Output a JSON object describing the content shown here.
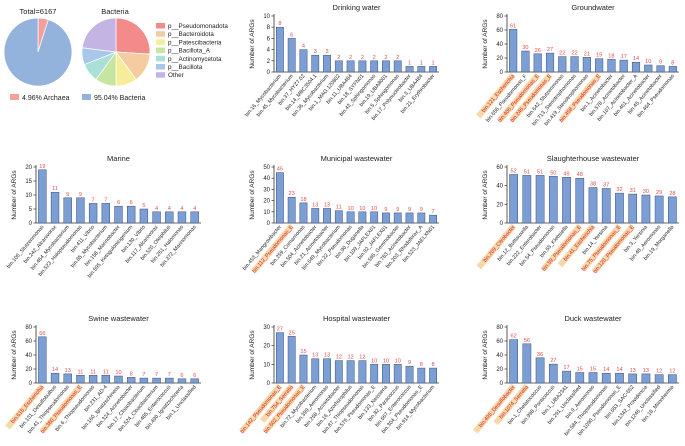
{
  "colors": {
    "bar": "#7b9fd4",
    "bar_stroke": "#3b4f77",
    "value_label": "#e34b4b",
    "highlight_red": "#d21f1f",
    "highlight_bg": "#f6d8aa",
    "archaea": "#f4a09e",
    "bacteria": "#93b2dc",
    "axis": "#333333"
  },
  "pie_total": {
    "title": "Total=6167",
    "slices": [
      {
        "name": "Archaea",
        "pct": 4.96,
        "color": "#f4a09e"
      },
      {
        "name": "Bacteria",
        "pct": 95.04,
        "color": "#93b2dc"
      }
    ],
    "legend": [
      {
        "text": "4.96% Archaea",
        "color": "#f4a09e"
      },
      {
        "text": "95.04% Bacteria",
        "color": "#93b2dc"
      }
    ]
  },
  "pie_bacteria": {
    "title": "Bacteria",
    "slices": [
      {
        "name": "p__Pseudomonadota",
        "value": 26,
        "color": "#f48b8b"
      },
      {
        "name": "p__Bacteroidota",
        "value": 14,
        "color": "#f5cba0"
      },
      {
        "name": "p__Patescibacteria",
        "value": 10,
        "color": "#f5ed99"
      },
      {
        "name": "p__Bacillota_A",
        "value": 10,
        "color": "#c6e5a1"
      },
      {
        "name": "p__Actinomycetota",
        "value": 9,
        "color": "#a9e1d9"
      },
      {
        "name": "p__Bacillota",
        "value": 8,
        "color": "#a8c7ea"
      },
      {
        "name": "Other",
        "value": 23,
        "color": "#c4b4e3"
      }
    ]
  },
  "chart_data": [
    {
      "type": "bar",
      "title": "Drinking water",
      "ylabel": "Number of ARGs",
      "ylim": [
        0,
        10
      ],
      "yticks": [
        0,
        2,
        4,
        6,
        8,
        10
      ],
      "categories": [
        "bin.16_Mycobacterium",
        "bin.45_Mycobacterium",
        "bin.37_HYZ7.02",
        "bin.14_MBC3504.1",
        "bin.36_Mycobacterium",
        "bin.1_MAG.120802",
        "bin.11_UBA484",
        "bin.18_SYFN01",
        "bin.43_Sphingomonas",
        "bin.19_UBA8001",
        "bin.5_Sphingomonas",
        "bin.17_Polynucleobacter",
        "bin.3_UBA484",
        "bin.21_Erythrobacter"
      ],
      "values": [
        8,
        6,
        4,
        3,
        3,
        2,
        2,
        2,
        2,
        2,
        2,
        1,
        1,
        1
      ],
      "highlight": []
    },
    {
      "type": "bar",
      "title": "Groundwater",
      "ylabel": "Number of ARGs",
      "ylim": [
        0,
        80
      ],
      "yticks": [
        0,
        20,
        40,
        60,
        80
      ],
      "categories": [
        "bin.121_Escherichia",
        "bin.656_Pseudomonas_F",
        "bin.406_Pseudomonas_E",
        "bin.246_Pseudomonas_E",
        "bin.642_Stutzerimonas",
        "bin.713_Stenotrophomonas",
        "bin.419_Stenotrophomonas",
        "bin.458_Pseudomonas_E",
        "bin.1_Acinetobacter",
        "bin.578_Acinetobacter",
        "bin.107_Acinetobacter_A",
        "bin.461_Acinetobacter",
        "bin.45_Acinetobacter",
        "bin.464_Pseudomonas"
      ],
      "values": [
        61,
        30,
        26,
        27,
        22,
        22,
        21,
        19,
        18,
        17,
        14,
        10,
        9,
        8
      ],
      "highlight": [
        0,
        2,
        3,
        7
      ]
    },
    {
      "type": "bar",
      "title": "Marine",
      "ylabel": "Number of ARGs",
      "ylim": [
        0,
        20
      ],
      "yticks": [
        0,
        5,
        10,
        15,
        20
      ],
      "categories": [
        "bin.106_Stutzerimonas",
        "bin.242_Alcanivorax",
        "bin.464_Mycobacterium",
        "bin.523_Halopseudomonas",
        "bin.411_Vibrio",
        "bin.85_Mycobacterium",
        "bin.158_Marinobacter",
        "bin.595_Ketogulonicigenium",
        "bin.130_Vibrio",
        "bin.117_Alcanivorax",
        "bin.520_Oleiphilus",
        "bin.261_Halomonas",
        "bin.372_Marinomonas"
      ],
      "values": [
        19,
        11,
        9,
        9,
        7,
        7,
        6,
        6,
        5,
        4,
        4,
        4,
        4
      ],
      "highlight": []
    },
    {
      "type": "bar",
      "title": "Municipal wastewater",
      "ylabel": "Number of ARGs",
      "ylim": [
        0,
        50
      ],
      "yticks": [
        0,
        10,
        20,
        30,
        40,
        50
      ],
      "categories": [
        "bin.453_Mangrovibacter",
        "bin.112_Pseudomonas_E",
        "bin.259_Comamonas",
        "bin.504_Acinetobacter",
        "bin.21_Acinetobacter",
        "bin.649_Mycobacterium",
        "bin.22_Pseudomonas",
        "bin.90_Duganella",
        "bin.109_JAFLEX01",
        "bin.92_JAFLEX01",
        "bin.595_Gemmobacter",
        "bin.783_Acinetobacter",
        "bin.203_Rhodoferax_A",
        "bin.523_JAELXN01"
      ],
      "values": [
        45,
        23,
        18,
        13,
        13,
        11,
        10,
        10,
        10,
        9,
        9,
        9,
        9,
        7
      ],
      "highlight": [
        1
      ]
    },
    {
      "type": "bar",
      "title": "Slaughterhouse wastewater",
      "ylabel": "Number of ARGs",
      "ylim": [
        0,
        60
      ],
      "yticks": [
        0,
        20,
        40,
        60
      ],
      "categories": [
        "bin.209_Citrobacter",
        "bin.12_Buttiauxella",
        "bin.222_Enterobacter",
        "bin.54_Pseudomonas",
        "bin.65_Klebsiella",
        "bin.59_Pseudomonas_E",
        "bin.41_Escherichia",
        "bin.14_Yersinia",
        "bin.75_Pseudomonas_E",
        "bin.120_Pseudomonas_E",
        "bin.3_Yersinia",
        "bin.48_Aeromonas",
        "bin.19_Morganella"
      ],
      "values": [
        52,
        51,
        51,
        50,
        49,
        48,
        38,
        37,
        32,
        31,
        30,
        29,
        28
      ],
      "highlight": [
        0,
        5,
        6,
        8,
        9
      ]
    },
    {
      "type": "bar",
      "title": "Swine wastewater",
      "ylabel": "Number of ARGs",
      "ylim": [
        0,
        80
      ],
      "yticks": [
        0,
        20,
        40,
        60,
        80
      ],
      "categories": [
        "bin.615_Escherichia",
        "bin.131_Desulfobulbus",
        "bin.41_Thiopseudomonas",
        "bin.380_Pseudomonas_E",
        "bin.6_Thiopseudomonas",
        "bin.231_AD-4",
        "bin.160_Ignatzschineria",
        "bin.324_Acinetobacter",
        "bin.17_Cloacibacterium",
        "bin.524_Cloacibacterium",
        "bin.485_Enterococcus",
        "bin.490_Ignatzschineria",
        "bin.1_Unclassified"
      ],
      "values": [
        66,
        14,
        13,
        11,
        11,
        11,
        10,
        8,
        7,
        7,
        7,
        6,
        6
      ],
      "highlight": [
        0,
        3
      ]
    },
    {
      "type": "bar",
      "title": "Hospital wastewater",
      "ylabel": "Number of ARGs",
      "ylim": [
        0,
        30
      ],
      "yticks": [
        0,
        10,
        20,
        30
      ],
      "categories": [
        "bin.142_Pseudomonas_E",
        "bin.754_Serratia",
        "bin.602_Pseudomonas_E",
        "bin.72_Mycobacterium",
        "bin.399_Aeromonas",
        "bin.268_Acinetobacter",
        "bin.16_Azorhizophilus",
        "bin.87_Thiopseudomonas",
        "bin.576_Pseudomonas_E",
        "bin.133_Neisseria",
        "bin.82_Paracoccus",
        "bin.667_Enterococcus",
        "bin.304_Pseudomonas_E",
        "bin.914_Mycobacterium"
      ],
      "values": [
        27,
        25,
        15,
        13,
        13,
        12,
        12,
        12,
        10,
        10,
        10,
        9,
        8,
        8
      ],
      "highlight": [
        0,
        1,
        2
      ]
    },
    {
      "type": "bar",
      "title": "Duck wastewater",
      "ylabel": "Number of ARGs",
      "ylim": [
        0,
        80
      ],
      "yticks": [
        0,
        20,
        40,
        60,
        80
      ],
      "categories": [
        "bin.495_Desulfobacter",
        "bin.1074_Serratia",
        "bin.1_Chelatococcus",
        "bin.998_Ponticoccus",
        "bin.1_UBA2341",
        "bin.291_Unclassified",
        "bin.9_Aeromonas",
        "bin.584_Thiopseudomonas",
        "bin.1090_Pseudomonas_E",
        "bin.653_SAC-662",
        "bin.1342_Providencia",
        "bin.1246_Unclassified",
        "bin.18_Mannheimia"
      ],
      "values": [
        62,
        56,
        36,
        27,
        17,
        15,
        15,
        14,
        14,
        13,
        13,
        12,
        12
      ],
      "highlight": [
        0,
        1
      ]
    }
  ]
}
